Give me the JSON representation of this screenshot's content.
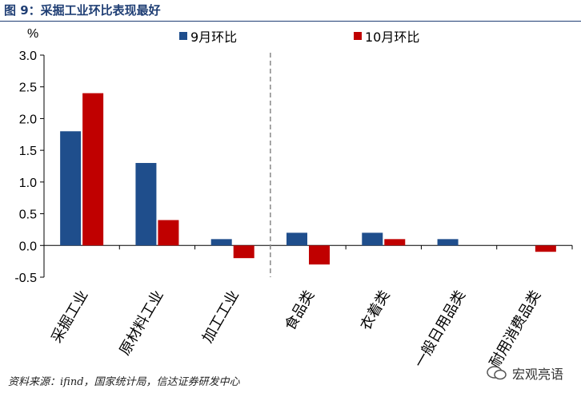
{
  "title": "图 9：采掘工业环比表现最好",
  "chart_data": {
    "type": "bar",
    "unit_label": "%",
    "categories": [
      "采掘工业",
      "原材料工业",
      "加工工业",
      "食品类",
      "衣着类",
      "一般日用品类",
      "耐用消费品类"
    ],
    "series": [
      {
        "name": "9月环比",
        "color": "#1f4e8c",
        "values": [
          1.8,
          1.3,
          0.1,
          0.2,
          0.2,
          0.1,
          0.0
        ]
      },
      {
        "name": "10月环比",
        "color": "#c00000",
        "values": [
          2.4,
          0.4,
          -0.2,
          -0.3,
          0.1,
          0.0,
          -0.1
        ]
      }
    ],
    "yticks": [
      "3.0",
      "2.5",
      "2.0",
      "1.5",
      "1.0",
      "0.5",
      "0.0",
      "-0.5"
    ],
    "ylim": [
      -0.5,
      3.0
    ],
    "divider_after_index": 2,
    "grid": false,
    "legend_position": "top"
  },
  "source": "资料来源：ifind，国家统计局，信达证券研发中心",
  "watermark": "宏观亮语"
}
